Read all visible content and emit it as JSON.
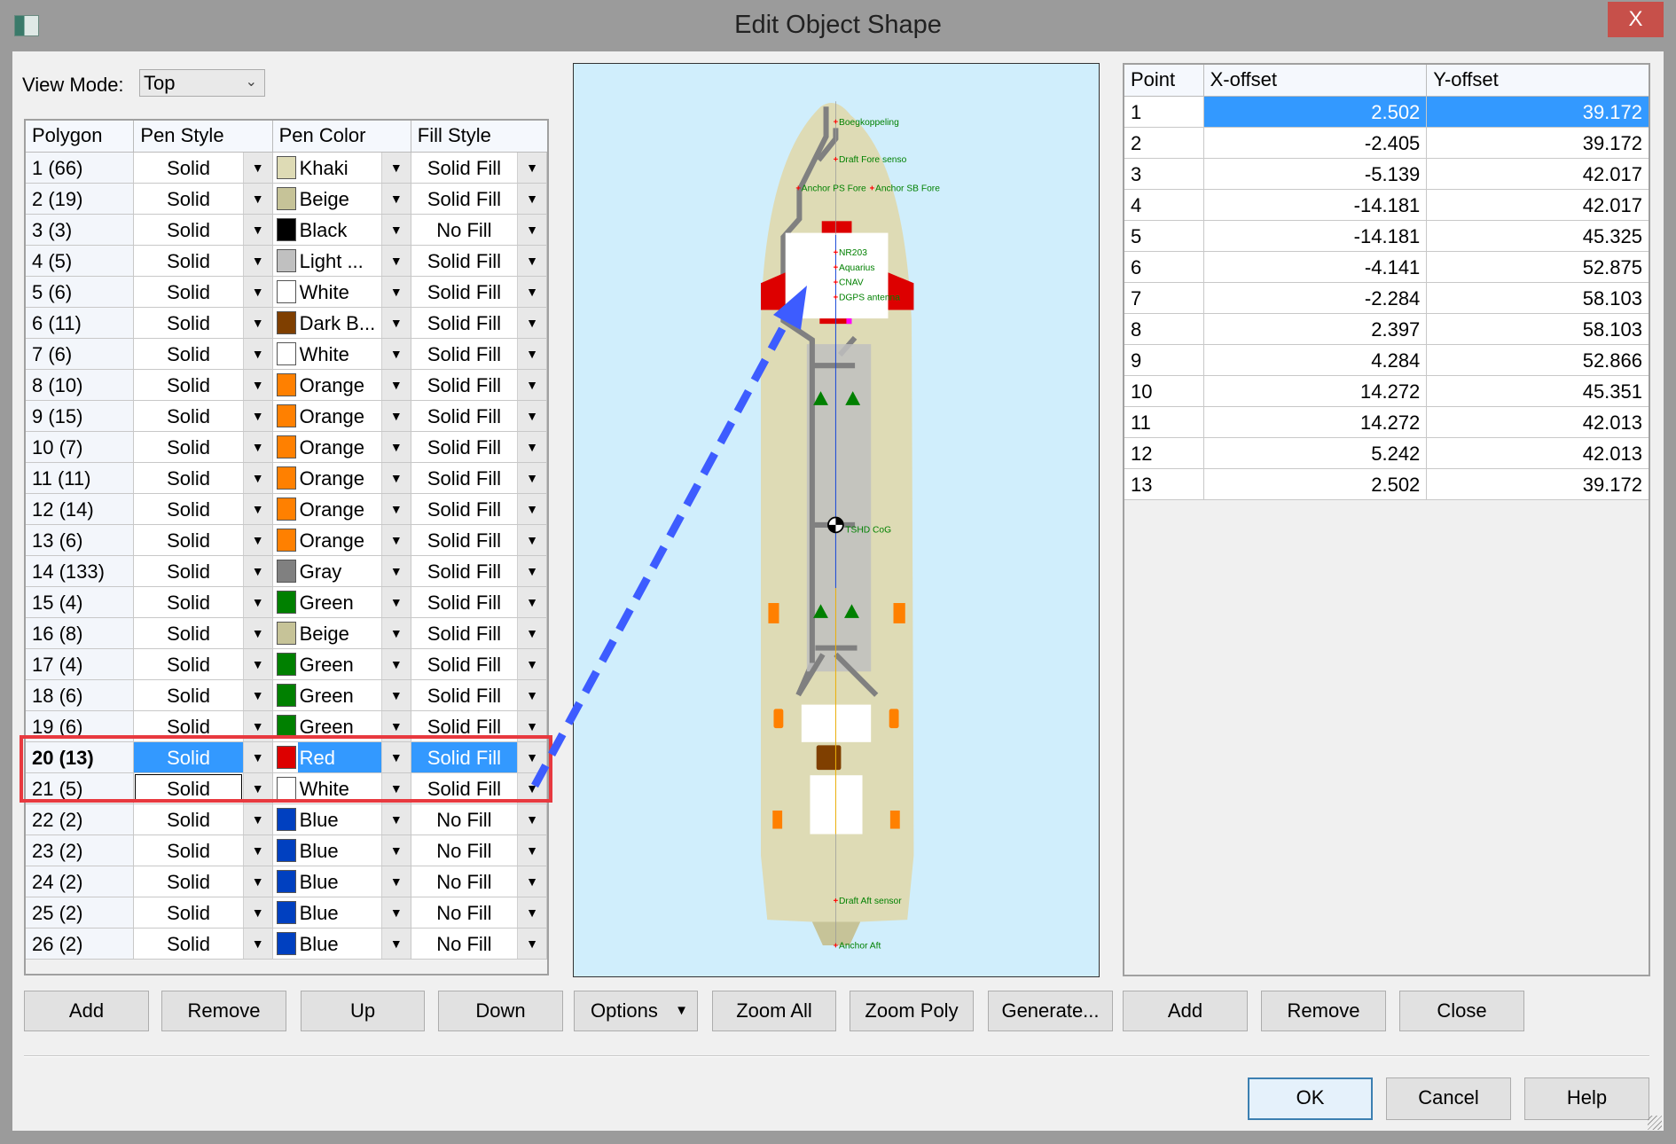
{
  "window": {
    "title": "Edit Object Shape",
    "close_label": "X"
  },
  "view_mode": {
    "label": "View Mode:",
    "value": "Top"
  },
  "polygon_table": {
    "headers": [
      "Polygon",
      "Pen Style",
      "Pen Color",
      "Fill Style"
    ],
    "selected_row": 20,
    "rows": [
      {
        "polygon": "1 (66)",
        "pen_style": "Solid",
        "pen_color": "Khaki",
        "color_hex": "#dedbb5",
        "fill_style": "Solid Fill"
      },
      {
        "polygon": "2 (19)",
        "pen_style": "Solid",
        "pen_color": "Beige",
        "color_hex": "#c6c398",
        "fill_style": "Solid Fill"
      },
      {
        "polygon": "3 (3)",
        "pen_style": "Solid",
        "pen_color": "Black",
        "color_hex": "#000000",
        "fill_style": "No Fill"
      },
      {
        "polygon": "4 (5)",
        "pen_style": "Solid",
        "pen_color": "Light ...",
        "color_hex": "#c0c0c0",
        "fill_style": "Solid Fill"
      },
      {
        "polygon": "5 (6)",
        "pen_style": "Solid",
        "pen_color": "White",
        "color_hex": "#ffffff",
        "fill_style": "Solid Fill"
      },
      {
        "polygon": "6 (11)",
        "pen_style": "Solid",
        "pen_color": "Dark B...",
        "color_hex": "#7f3f00",
        "fill_style": "Solid Fill"
      },
      {
        "polygon": "7 (6)",
        "pen_style": "Solid",
        "pen_color": "White",
        "color_hex": "#ffffff",
        "fill_style": "Solid Fill"
      },
      {
        "polygon": "8 (10)",
        "pen_style": "Solid",
        "pen_color": "Orange",
        "color_hex": "#ff8000",
        "fill_style": "Solid Fill"
      },
      {
        "polygon": "9 (15)",
        "pen_style": "Solid",
        "pen_color": "Orange",
        "color_hex": "#ff8000",
        "fill_style": "Solid Fill"
      },
      {
        "polygon": "10 (7)",
        "pen_style": "Solid",
        "pen_color": "Orange",
        "color_hex": "#ff8000",
        "fill_style": "Solid Fill"
      },
      {
        "polygon": "11 (11)",
        "pen_style": "Solid",
        "pen_color": "Orange",
        "color_hex": "#ff8000",
        "fill_style": "Solid Fill"
      },
      {
        "polygon": "12 (14)",
        "pen_style": "Solid",
        "pen_color": "Orange",
        "color_hex": "#ff8000",
        "fill_style": "Solid Fill"
      },
      {
        "polygon": "13 (6)",
        "pen_style": "Solid",
        "pen_color": "Orange",
        "color_hex": "#ff8000",
        "fill_style": "Solid Fill"
      },
      {
        "polygon": "14 (133)",
        "pen_style": "Solid",
        "pen_color": "Gray",
        "color_hex": "#808080",
        "fill_style": "Solid Fill"
      },
      {
        "polygon": "15 (4)",
        "pen_style": "Solid",
        "pen_color": "Green",
        "color_hex": "#008000",
        "fill_style": "Solid Fill"
      },
      {
        "polygon": "16 (8)",
        "pen_style": "Solid",
        "pen_color": "Beige",
        "color_hex": "#c6c398",
        "fill_style": "Solid Fill"
      },
      {
        "polygon": "17 (4)",
        "pen_style": "Solid",
        "pen_color": "Green",
        "color_hex": "#008000",
        "fill_style": "Solid Fill"
      },
      {
        "polygon": "18 (6)",
        "pen_style": "Solid",
        "pen_color": "Green",
        "color_hex": "#008000",
        "fill_style": "Solid Fill"
      },
      {
        "polygon": "19 (6)",
        "pen_style": "Solid",
        "pen_color": "Green",
        "color_hex": "#008000",
        "fill_style": "Solid Fill"
      },
      {
        "polygon": "20 (13)",
        "pen_style": "Solid",
        "pen_color": "Red",
        "color_hex": "#dd0000",
        "fill_style": "Solid Fill"
      },
      {
        "polygon": "21 (5)",
        "pen_style": "Solid",
        "pen_color": "White",
        "color_hex": "#ffffff",
        "fill_style": "Solid Fill"
      },
      {
        "polygon": "22 (2)",
        "pen_style": "Solid",
        "pen_color": "Blue",
        "color_hex": "#0040c0",
        "fill_style": "No Fill"
      },
      {
        "polygon": "23 (2)",
        "pen_style": "Solid",
        "pen_color": "Blue",
        "color_hex": "#0040c0",
        "fill_style": "No Fill"
      },
      {
        "polygon": "24 (2)",
        "pen_style": "Solid",
        "pen_color": "Blue",
        "color_hex": "#0040c0",
        "fill_style": "No Fill"
      },
      {
        "polygon": "25 (2)",
        "pen_style": "Solid",
        "pen_color": "Blue",
        "color_hex": "#0040c0",
        "fill_style": "No Fill"
      },
      {
        "polygon": "26 (2)",
        "pen_style": "Solid",
        "pen_color": "Blue",
        "color_hex": "#0040c0",
        "fill_style": "No Fill"
      }
    ]
  },
  "shape_view": {
    "labels": {
      "boegkoppeling": "Boegkoppeling",
      "draft_fore": "Draft Fore senso",
      "anchor_ps_fore": "Anchor PS Fore",
      "anchor_sb_fore": "Anchor SB Fore",
      "nr203": "NR203",
      "aquarius": "Aquarius",
      "cnav": "CNAV",
      "dgps": "DGPS antenna",
      "cog": "TSHD CoG",
      "draft_aft": "Draft Aft sensor",
      "anchor_aft": "Anchor Aft"
    },
    "colors": {
      "water": "#d0eefc",
      "hull": "#dedbb5",
      "label": "#008000",
      "marker": "#ff0000",
      "annotation_arrow": "#3d5cff",
      "highlight_box": "#e8393f"
    }
  },
  "point_table": {
    "headers": [
      "Point",
      "X-offset",
      "Y-offset"
    ],
    "selected_row": 1,
    "rows": [
      {
        "point": "1",
        "x": "2.502",
        "y": "39.172"
      },
      {
        "point": "2",
        "x": "-2.405",
        "y": "39.172"
      },
      {
        "point": "3",
        "x": "-5.139",
        "y": "42.017"
      },
      {
        "point": "4",
        "x": "-14.181",
        "y": "42.017"
      },
      {
        "point": "5",
        "x": "-14.181",
        "y": "45.325"
      },
      {
        "point": "6",
        "x": "-4.141",
        "y": "52.875"
      },
      {
        "point": "7",
        "x": "-2.284",
        "y": "58.103"
      },
      {
        "point": "8",
        "x": "2.397",
        "y": "58.103"
      },
      {
        "point": "9",
        "x": "4.284",
        "y": "52.866"
      },
      {
        "point": "10",
        "x": "14.272",
        "y": "45.351"
      },
      {
        "point": "11",
        "x": "14.272",
        "y": "42.013"
      },
      {
        "point": "12",
        "x": "5.242",
        "y": "42.013"
      },
      {
        "point": "13",
        "x": "2.502",
        "y": "39.172"
      }
    ]
  },
  "buttons": {
    "add": "Add",
    "remove": "Remove",
    "up": "Up",
    "down": "Down",
    "options": "Options",
    "zoom_all": "Zoom All",
    "zoom_poly": "Zoom Poly",
    "generate": "Generate...",
    "point_add": "Add",
    "point_remove": "Remove",
    "close": "Close",
    "ok": "OK",
    "cancel": "Cancel",
    "help": "Help"
  }
}
